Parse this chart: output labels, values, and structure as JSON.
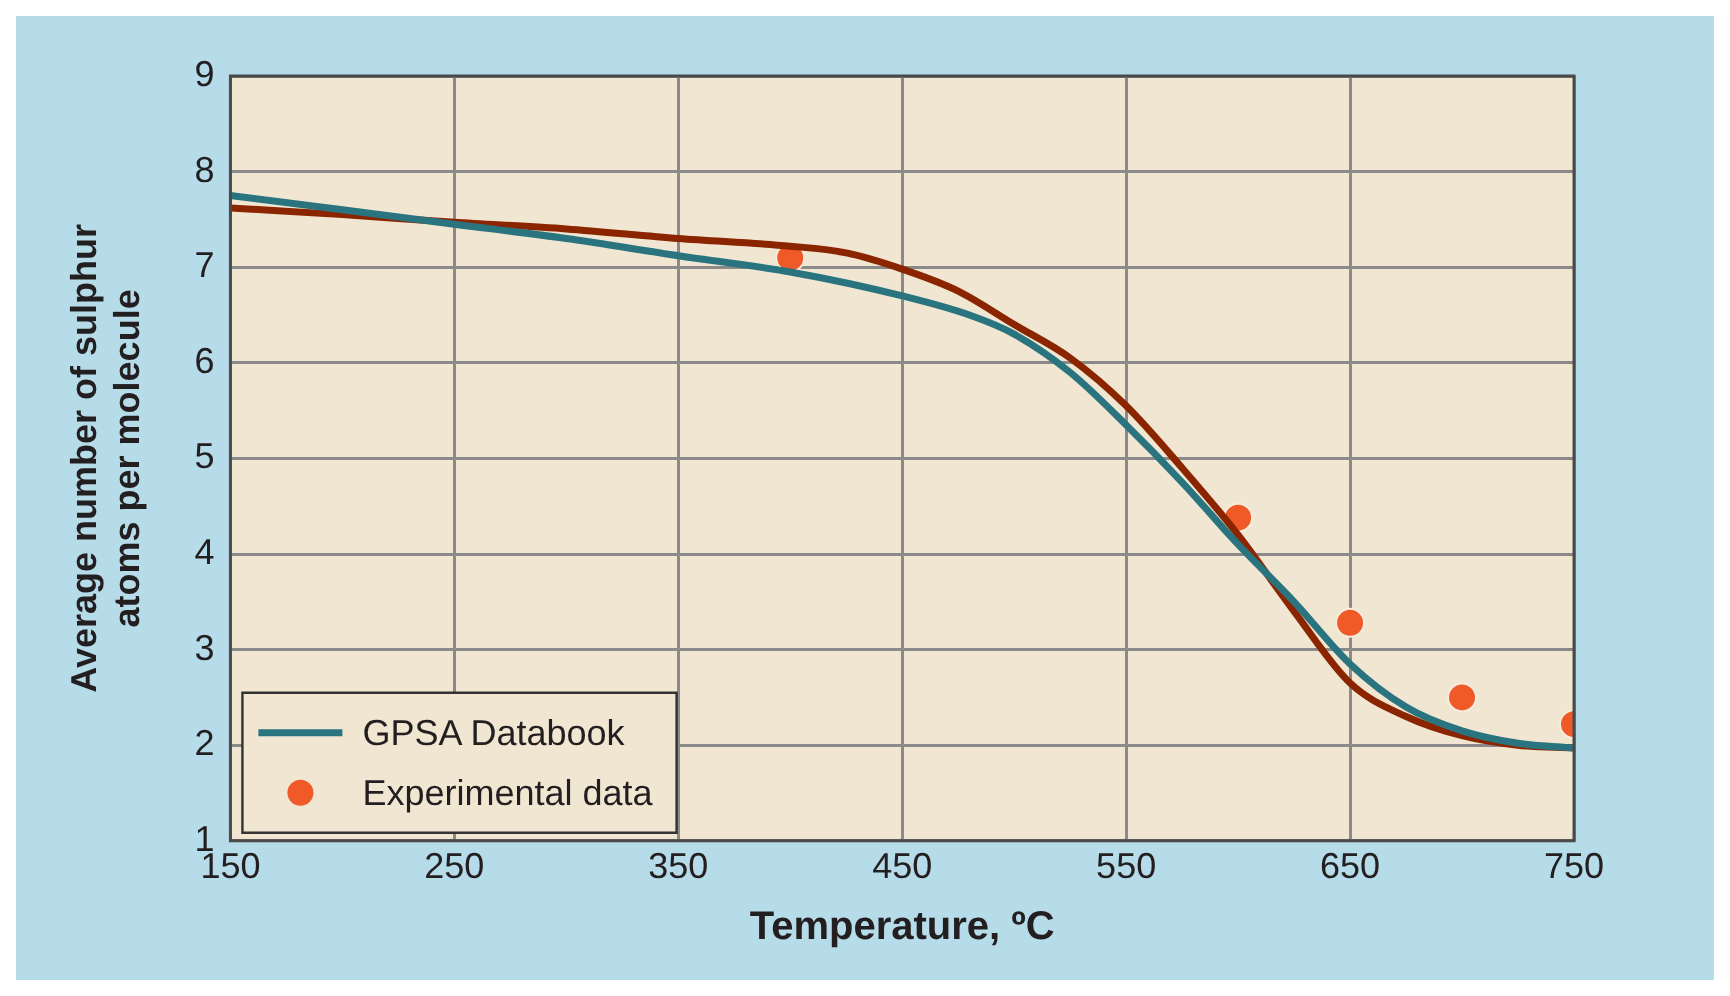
{
  "chart_data": {
    "type": "line",
    "xlabel": "Temperature, ºC",
    "ylabel": "Average number of sulphur atoms per molecule",
    "xlim": [
      150,
      750
    ],
    "xticks": [
      150,
      250,
      350,
      450,
      550,
      650,
      750
    ],
    "ylim": [
      1,
      9
    ],
    "yticks": [
      1,
      2,
      3,
      4,
      5,
      6,
      7,
      8,
      9
    ],
    "grid": true,
    "legend": "bottom left",
    "series": [
      {
        "name": "GPSA Databook",
        "color": "#2a7480",
        "x": [
          150,
          200,
          250,
          300,
          350,
          400,
          450,
          480,
          500,
          525,
          550,
          575,
          600,
          625,
          650,
          675,
          700,
          725,
          750
        ],
        "values": [
          7.75,
          7.6,
          7.45,
          7.3,
          7.12,
          6.95,
          6.7,
          6.5,
          6.3,
          5.9,
          5.35,
          4.75,
          4.1,
          3.5,
          2.85,
          2.4,
          2.15,
          2.02,
          1.97
        ]
      },
      {
        "color": "#8b2500",
        "x": [
          150,
          200,
          250,
          300,
          350,
          400,
          425,
          450,
          475,
          500,
          525,
          550,
          575,
          600,
          625,
          650,
          675,
          700,
          725,
          750
        ],
        "values": [
          7.62,
          7.55,
          7.47,
          7.4,
          7.3,
          7.22,
          7.15,
          6.98,
          6.75,
          6.4,
          6.05,
          5.55,
          4.9,
          4.2,
          3.4,
          2.65,
          2.3,
          2.1,
          2.0,
          1.97
        ]
      },
      {
        "name": "Experimental data",
        "type": "scatter",
        "marker": "circle",
        "color": "#f05a28",
        "x": [
          400,
          600,
          650,
          700,
          750
        ],
        "values": [
          7.1,
          4.38,
          3.28,
          2.5,
          2.22
        ]
      }
    ]
  }
}
